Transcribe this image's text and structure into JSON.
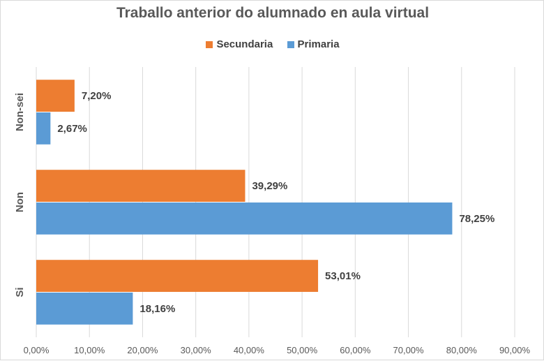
{
  "chart_data": {
    "type": "bar",
    "orientation": "horizontal",
    "title": "Traballo anterior do alumnado en aula virtual",
    "categories": [
      "Non-sei",
      "Non",
      "Si"
    ],
    "series": [
      {
        "name": "Secundaria",
        "color": "#ed7d31",
        "values": [
          7.2,
          39.29,
          53.01
        ],
        "labels": [
          "7,20%",
          "39,29%",
          "53,01%"
        ]
      },
      {
        "name": "Primaria",
        "color": "#5b9bd5",
        "values": [
          2.67,
          78.25,
          18.16
        ],
        "labels": [
          "2,67%",
          "78,25%",
          "18,16%"
        ]
      }
    ],
    "xlim": [
      0,
      90
    ],
    "xticks": [
      "0,00%",
      "10,00%",
      "20,00%",
      "30,00%",
      "40,00%",
      "50,00%",
      "60,00%",
      "70,00%",
      "80,00%",
      "90,00%"
    ],
    "grid": true,
    "legend": "top"
  }
}
